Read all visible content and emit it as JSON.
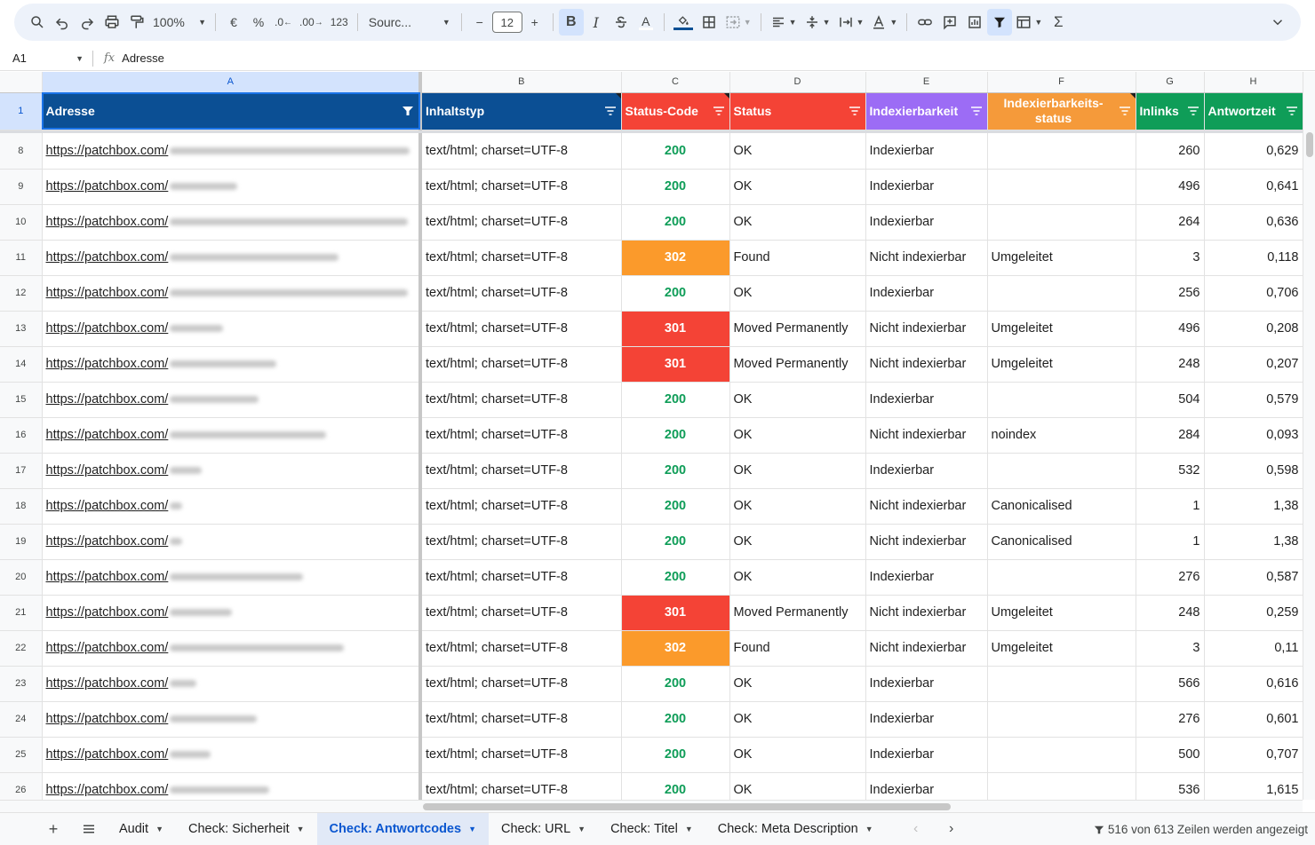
{
  "toolbar": {
    "zoom": "100%",
    "currency": "€",
    "percent": "%",
    "decrease_decimals": ".0",
    "increase_decimals": ".00",
    "number_format": "123",
    "font": "Sourc...",
    "font_size": "12",
    "decrease_size": "−",
    "increase_size": "+",
    "bold": "B",
    "italic": "I",
    "text_color": "A",
    "function_sigma": "Σ"
  },
  "formula_bar": {
    "cell_ref": "A1",
    "fx": "fx",
    "content": "Adresse"
  },
  "grid": {
    "column_letters": [
      "A",
      "B",
      "C",
      "D",
      "E",
      "F",
      "G",
      "H"
    ],
    "headers": {
      "row_number": "1",
      "adresse": "Adresse",
      "inhaltstyp": "Inhaltstyp",
      "status_code": "Status-Code",
      "status": "Status",
      "indexierbarkeit": "Indexierbarkeit",
      "indexierbarkeitsstatus": "Indexierbarkeits-status",
      "inlinks": "Inlinks",
      "antwortzeit": "Antwortzeit"
    },
    "header_colors": {
      "adresse": "#0b4f94",
      "inhaltstyp": "#0b4f94",
      "status_code": "#f44336",
      "status": "#f44336",
      "indexierbarkeit": "#9c6cf5",
      "indexierbarkeitsstatus": "#f59a3a",
      "inlinks": "#0f9d58",
      "antwortzeit": "#0f9d58"
    },
    "rows": [
      {
        "row": "8",
        "url": "https://patchbox.com/",
        "type": "text/html; charset=UTF-8",
        "code": "200",
        "status": "OK",
        "index": "Indexierbar",
        "index_status": "",
        "inlinks": "260",
        "time": "0,629"
      },
      {
        "row": "9",
        "url": "https://patchbox.com/",
        "type": "text/html; charset=UTF-8",
        "code": "200",
        "status": "OK",
        "index": "Indexierbar",
        "index_status": "",
        "inlinks": "496",
        "time": "0,641"
      },
      {
        "row": "10",
        "url": "https://patchbox.com/",
        "type": "text/html; charset=UTF-8",
        "code": "200",
        "status": "OK",
        "index": "Indexierbar",
        "index_status": "",
        "inlinks": "264",
        "time": "0,636"
      },
      {
        "row": "11",
        "url": "https://patchbox.com/",
        "type": "text/html; charset=UTF-8",
        "code": "302",
        "status": "Found",
        "index": "Nicht indexierbar",
        "index_status": "Umgeleitet",
        "inlinks": "3",
        "time": "0,118"
      },
      {
        "row": "12",
        "url": "https://patchbox.com/",
        "type": "text/html; charset=UTF-8",
        "code": "200",
        "status": "OK",
        "index": "Indexierbar",
        "index_status": "",
        "inlinks": "256",
        "time": "0,706"
      },
      {
        "row": "13",
        "url": "https://patchbox.com/",
        "type": "text/html; charset=UTF-8",
        "code": "301",
        "status": "Moved Permanently",
        "index": "Nicht indexierbar",
        "index_status": "Umgeleitet",
        "inlinks": "496",
        "time": "0,208"
      },
      {
        "row": "14",
        "url": "https://patchbox.com/",
        "type": "text/html; charset=UTF-8",
        "code": "301",
        "status": "Moved Permanently",
        "index": "Nicht indexierbar",
        "index_status": "Umgeleitet",
        "inlinks": "248",
        "time": "0,207"
      },
      {
        "row": "15",
        "url": "https://patchbox.com/",
        "type": "text/html; charset=UTF-8",
        "code": "200",
        "status": "OK",
        "index": "Indexierbar",
        "index_status": "",
        "inlinks": "504",
        "time": "0,579"
      },
      {
        "row": "16",
        "url": "https://patchbox.com/",
        "type": "text/html; charset=UTF-8",
        "code": "200",
        "status": "OK",
        "index": "Nicht indexierbar",
        "index_status": "noindex",
        "inlinks": "284",
        "time": "0,093"
      },
      {
        "row": "17",
        "url": "https://patchbox.com/",
        "type": "text/html; charset=UTF-8",
        "code": "200",
        "status": "OK",
        "index": "Indexierbar",
        "index_status": "",
        "inlinks": "532",
        "time": "0,598"
      },
      {
        "row": "18",
        "url": "https://patchbox.com/",
        "type": "text/html; charset=UTF-8",
        "code": "200",
        "status": "OK",
        "index": "Nicht indexierbar",
        "index_status": "Canonicalised",
        "inlinks": "1",
        "time": "1,38"
      },
      {
        "row": "19",
        "url": "https://patchbox.com/",
        "type": "text/html; charset=UTF-8",
        "code": "200",
        "status": "OK",
        "index": "Nicht indexierbar",
        "index_status": "Canonicalised",
        "inlinks": "1",
        "time": "1,38"
      },
      {
        "row": "20",
        "url": "https://patchbox.com/",
        "type": "text/html; charset=UTF-8",
        "code": "200",
        "status": "OK",
        "index": "Indexierbar",
        "index_status": "",
        "inlinks": "276",
        "time": "0,587"
      },
      {
        "row": "21",
        "url": "https://patchbox.com/",
        "type": "text/html; charset=UTF-8",
        "code": "301",
        "status": "Moved Permanently",
        "index": "Nicht indexierbar",
        "index_status": "Umgeleitet",
        "inlinks": "248",
        "time": "0,259"
      },
      {
        "row": "22",
        "url": "https://patchbox.com/",
        "type": "text/html; charset=UTF-8",
        "code": "302",
        "status": "Found",
        "index": "Nicht indexierbar",
        "index_status": "Umgeleitet",
        "inlinks": "3",
        "time": "0,11"
      },
      {
        "row": "23",
        "url": "https://patchbox.com/",
        "type": "text/html; charset=UTF-8",
        "code": "200",
        "status": "OK",
        "index": "Indexierbar",
        "index_status": "",
        "inlinks": "566",
        "time": "0,616"
      },
      {
        "row": "24",
        "url": "https://patchbox.com/",
        "type": "text/html; charset=UTF-8",
        "code": "200",
        "status": "OK",
        "index": "Indexierbar",
        "index_status": "",
        "inlinks": "276",
        "time": "0,601"
      },
      {
        "row": "25",
        "url": "https://patchbox.com/",
        "type": "text/html; charset=UTF-8",
        "code": "200",
        "status": "OK",
        "index": "Indexierbar",
        "index_status": "",
        "inlinks": "500",
        "time": "0,707"
      },
      {
        "row": "26",
        "url": "https://patchbox.com/",
        "type": "text/html; charset=UTF-8",
        "code": "200",
        "status": "OK",
        "index": "Indexierbar",
        "index_status": "",
        "inlinks": "536",
        "time": "1,615"
      }
    ]
  },
  "tabs": {
    "items": [
      {
        "label": "Audit",
        "active": false
      },
      {
        "label": "Check: Sicherheit",
        "active": false
      },
      {
        "label": "Check: Antwortcodes",
        "active": true
      },
      {
        "label": "Check: URL",
        "active": false
      },
      {
        "label": "Check: Titel",
        "active": false
      },
      {
        "label": "Check: Meta Description",
        "active": false
      }
    ],
    "row_status": "516 von 613 Zeilen werden angezeigt"
  },
  "colors": {
    "status_200": "#0f9d58",
    "status_301": "#f44336",
    "status_302": "#fb9a2b",
    "accent": "#0b57d0"
  }
}
